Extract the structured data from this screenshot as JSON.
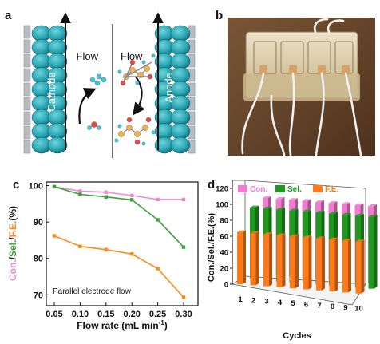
{
  "panel_labels": {
    "a": "a",
    "b": "b",
    "c": "c",
    "d": "d"
  },
  "schematic": {
    "cathode_label": "Cathode",
    "anode_label": "Anode",
    "flow_left_label": "Flow",
    "flow_right_label": "Flow",
    "colors": {
      "electrode_bead": "#2aa7b4",
      "electrode_frame": "#b8bcc2",
      "carbon": "#f4b24c",
      "oxygen": "#e84a4a",
      "hydrogen": "#3cc7e8"
    }
  },
  "photo": {
    "colors": {
      "background": "#6b4a2e",
      "device": "#d9c6a0",
      "tubing": "#f2f2f2"
    }
  },
  "chart_data": [
    {
      "type": "line",
      "panel": "c",
      "x": [
        0.05,
        0.1,
        0.15,
        0.2,
        0.25,
        0.3
      ],
      "series": [
        {
          "name": "Con.",
          "color": "#f08ad0",
          "values": [
            99.7,
            98.5,
            98.2,
            97.3,
            96.2,
            96.2
          ]
        },
        {
          "name": "Sel.",
          "color": "#3aa33a",
          "values": [
            99.7,
            97.6,
            96.9,
            96.1,
            90.6,
            83.1
          ]
        },
        {
          "name": "F.E.",
          "color": "#ff8c1a",
          "values": [
            86.2,
            83.3,
            82.4,
            81.2,
            77.2,
            69.3
          ]
        }
      ],
      "ylabel_parts": [
        "Con.",
        "/",
        "Sel.",
        "/",
        "F.E.",
        "(%)"
      ],
      "xlabel_text": "Flow rate (mL min",
      "xlabel_sup": "-1",
      "xlabel_close": ")",
      "annotation": "Parallel electrode flow",
      "xticks": [
        "0.05",
        "0.10",
        "0.15",
        "0.20",
        "0.25",
        "0.30"
      ],
      "yticks": [
        "70",
        "80",
        "90",
        "100"
      ],
      "xlim": [
        0.05,
        0.3
      ],
      "ylim": [
        67,
        101
      ],
      "grid": false,
      "legend": "none"
    },
    {
      "type": "bar",
      "panel": "d",
      "categories": [
        "1",
        "2",
        "3",
        "4",
        "5",
        "6",
        "7",
        "8",
        "9",
        "10"
      ],
      "series": [
        {
          "name": "Con.",
          "color": "#f07bd0",
          "values": [
            96,
            96,
            96,
            96,
            96,
            96,
            96,
            96,
            96,
            96
          ]
        },
        {
          "name": "Sel.",
          "color": "#1f9a1f",
          "values": [
            90,
            90,
            90,
            90,
            90,
            90,
            90,
            90,
            90,
            90
          ]
        },
        {
          "name": "F.E.",
          "color": "#ff7a1a",
          "values": [
            65,
            65,
            65,
            65,
            65,
            65,
            65,
            65,
            65,
            65
          ]
        }
      ],
      "ylabel": "Con./Sel./F.E.(%)",
      "xlabel": "Cycles",
      "yticks": [
        "0",
        "20",
        "40",
        "60",
        "80",
        "100",
        "120"
      ],
      "ylim": [
        0,
        120
      ],
      "legend": "top-left"
    }
  ]
}
